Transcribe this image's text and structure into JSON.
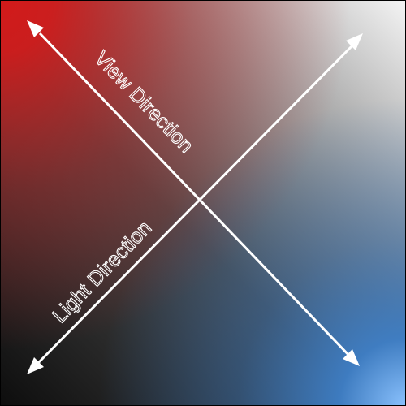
{
  "diagram": {
    "labels": {
      "view_direction": "View Direction",
      "light_direction": "Light Direction"
    },
    "colors": {
      "red_corner": "#d21a1a",
      "white_corner": "#f3f3f3",
      "black_corner": "#101010",
      "blue_corner": "#8cc3ff",
      "mid_blue": "#2f6fb6",
      "arrow": "#ffffff"
    }
  }
}
